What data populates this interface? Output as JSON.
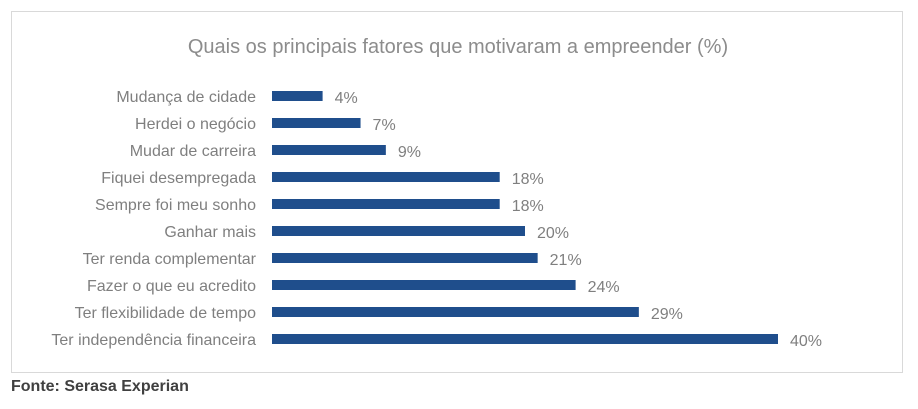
{
  "chart_data": {
    "type": "bar",
    "orientation": "horizontal",
    "title": "Quais os principais fatores que motivaram a empreender (%)",
    "categories": [
      "Mudança de cidade",
      "Herdei o negócio",
      "Mudar de carreira",
      "Fiquei desempregada",
      "Sempre foi meu sonho",
      "Ganhar mais",
      "Ter renda complementar",
      "Fazer o que eu acredito",
      "Ter flexibilidade de tempo",
      "Ter independência financeira"
    ],
    "values": [
      4,
      7,
      9,
      18,
      18,
      20,
      21,
      24,
      29,
      40
    ],
    "value_labels": [
      "4%",
      "7%",
      "9%",
      "18%",
      "18%",
      "20%",
      "21%",
      "24%",
      "29%",
      "40%"
    ],
    "xlim": [
      0,
      40
    ],
    "grid": false,
    "legend": "none",
    "bar_color": "#1f4e8c",
    "label_color": "#7f7f7f",
    "title_color": "#8c8c8c"
  },
  "source": "Fonte: Serasa Experian"
}
